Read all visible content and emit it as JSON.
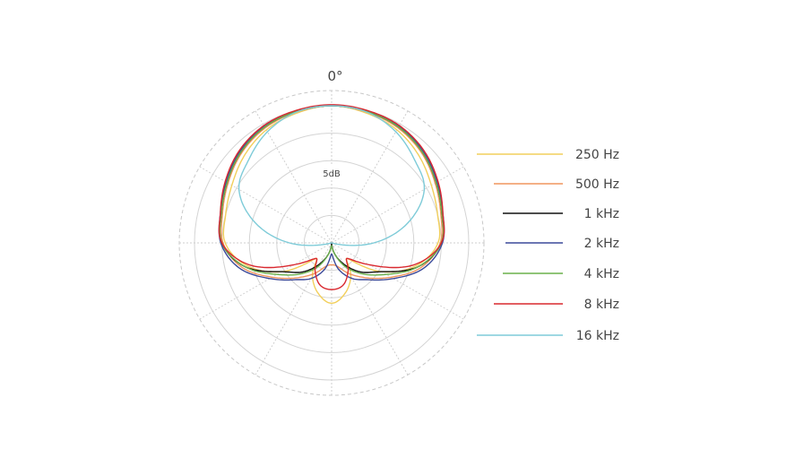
{
  "chart_data": {
    "type": "polar-line",
    "title": "",
    "angle_label": "0°",
    "scale_label": "5dB",
    "radial_unit": "dB",
    "rlim": [
      -25,
      0
    ],
    "ring_step_db": 5,
    "grid": true,
    "symmetric": true,
    "legend_placement": "right",
    "angles_deg": [
      0,
      15,
      30,
      45,
      60,
      75,
      90,
      105,
      120,
      135,
      150,
      165,
      180
    ],
    "series": [
      {
        "name": "250 Hz",
        "color": "#f2cf5b",
        "values": [
          0,
          -0.5,
          -1.2,
          -2.5,
          -4,
          -5,
          -5.6,
          -9,
          -14.5,
          -21,
          -18,
          -15.5,
          -14
        ]
      },
      {
        "name": "500 Hz",
        "color": "#f0955e",
        "values": [
          0,
          -0.3,
          -0.8,
          -1.8,
          -3.2,
          -4.4,
          -5.2,
          -8,
          -12.5,
          -16,
          -18.5,
          -20.5,
          -21
        ]
      },
      {
        "name": "1 kHz",
        "color": "#111111",
        "values": [
          0,
          -0.2,
          -0.6,
          -1.6,
          -3,
          -4.2,
          -5,
          -8.5,
          -14.5,
          -17.5,
          -20.5,
          -23,
          -25
        ]
      },
      {
        "name": "2 kHz",
        "color": "#3b4a9a",
        "values": [
          0,
          -0.2,
          -0.5,
          -1.4,
          -2.8,
          -4,
          -4.8,
          -7.5,
          -12,
          -15.5,
          -17.5,
          -20,
          -23
        ]
      },
      {
        "name": "4 kHz",
        "color": "#6ab04c",
        "values": [
          0,
          -0.2,
          -0.6,
          -1.6,
          -3,
          -4.2,
          -5,
          -8.5,
          -13.5,
          -17,
          -20,
          -23,
          -24.5
        ]
      },
      {
        "name": "8 kHz",
        "color": "#d9282f",
        "values": [
          0.2,
          0,
          -0.3,
          -1.2,
          -2.6,
          -4,
          -5,
          -9.5,
          -17,
          -21,
          -19,
          -17,
          -16.5
        ]
      },
      {
        "name": "16 kHz",
        "color": "#7ecbd8",
        "values": [
          0,
          -0.3,
          -1.6,
          -3.6,
          -5.5,
          -10.5,
          -17.3,
          -25,
          -25,
          -25,
          -25,
          -25,
          -25
        ]
      }
    ]
  }
}
